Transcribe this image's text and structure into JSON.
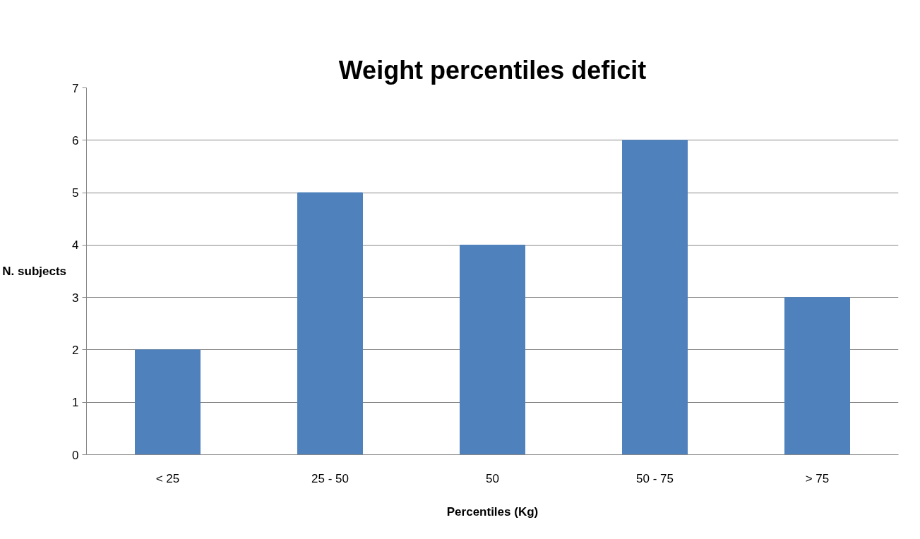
{
  "chart_data": {
    "type": "bar",
    "title": "Weight percentiles deficit",
    "xlabel": "Percentiles (Kg)",
    "ylabel": "N. subjects",
    "categories": [
      "< 25",
      "25 - 50",
      "50",
      "50 - 75",
      "> 75"
    ],
    "values": [
      2,
      5,
      4,
      6,
      3
    ],
    "color": "#4f81bd",
    "ylim": [
      0,
      7
    ],
    "yticks": [
      0,
      1,
      2,
      3,
      4,
      5,
      6,
      7
    ],
    "grid": "y"
  }
}
